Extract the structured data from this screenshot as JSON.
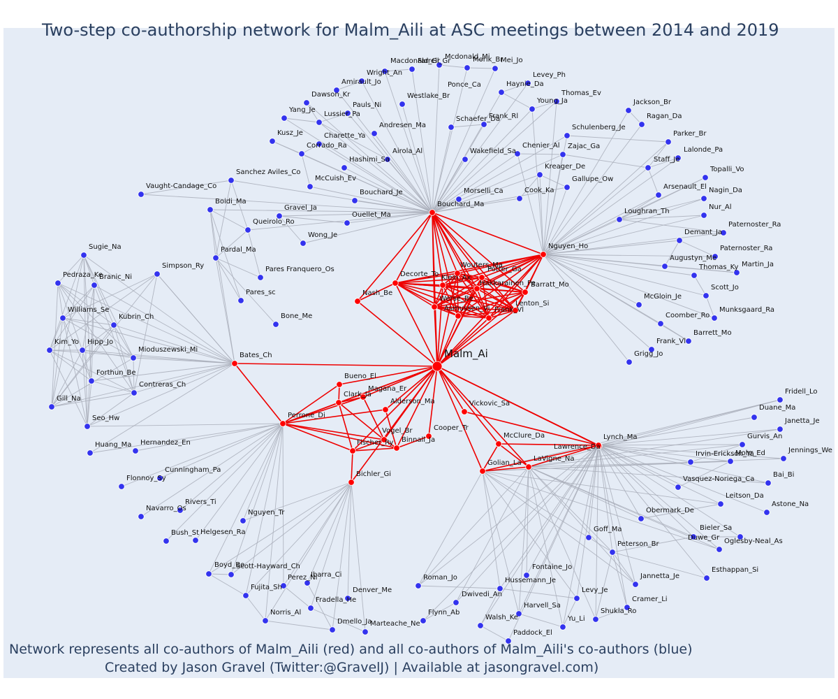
{
  "title": "Two-step co-authorship network for Malm_Aili at ASC meetings between 2014 and 2019",
  "footer": {
    "line1": "Network represents all co-authors of Malm_Aili (red) and all co-authors of Malm_Aili's co-authors (blue)",
    "line2": "Created by Jason Gravel (Twitter:@GravelJ) | Available at jasongravel.com)"
  },
  "colors": {
    "focal": "#ff0000",
    "first_step": "#ff0000",
    "second_step": "#3333ee",
    "edge_red": "#ee0000",
    "edge_gray": "#a8adb8"
  },
  "focal_author": "Malm_Ai",
  "red_nodes": [
    "Bouchard_Ma",
    "Nguyen_Ho",
    "Decorte_To",
    "Wouters_Ma",
    "Potter_Ga",
    "Klein_Ax",
    "Hakkarainen_Pe",
    "Barratt_Mo",
    "Werse_Be",
    "Asmussen_Vi",
    "Frank_Vl",
    "Lenton_Si",
    "Nash_Be",
    "Bates_Ch",
    "Bueno_El",
    "Clark_Ja",
    "Magana_Er",
    "Alderson_Ma",
    "Perrone_Di",
    "Vogel_Br",
    "Fischer_Ry",
    "Binnall_Ja",
    "Cooper_Tr",
    "Vickovic_Sa",
    "McClure_Da",
    "Lawrence_Da",
    "Lynch_Ma",
    "Golian_La",
    "LaVigne_Na",
    "Bichler_Gi"
  ],
  "blue_nodes": [
    "Sugie_Na",
    "Pedraza_Ke",
    "Branic_Ni",
    "Williams_Se",
    "Kubrin_Ch",
    "Kim_Yo",
    "Hipp_Jo",
    "Mioduszewski_Mi",
    "Forthun_Be",
    "Contreras_Ch",
    "Gill_Na",
    "Seo_Hw",
    "Huang_Ma",
    "Hernandez_En",
    "Cunningham_Pa",
    "Flonnoy_Sy",
    "Navarro_Os",
    "Rivers_Ti",
    "Bush_St",
    "Helgesen_Ra",
    "Nguyen_Tr",
    "Boyd_Bo",
    "Scott-Hayward_Ch",
    "Perez_Ni",
    "Ibarra_Ci",
    "Fujita_Sh",
    "Fradella_He",
    "Denver_Me",
    "Norris_Al",
    "Dmello_Ja",
    "Marteache_Ne",
    "Roman_Jo",
    "Flynn_Ab",
    "Dwivedi_An",
    "Hussemann_Je",
    "Fontaine_Jo",
    "Walsh_Ke",
    "Harvell_Sa",
    "Paddock_El",
    "Yu_Li",
    "Levy_Je",
    "Shukla_Ro",
    "Cramer_Li",
    "Jannetta_Je",
    "Esthappan_Si",
    "Peterson_Br",
    "Goff_Ma",
    "Duwe_Gr",
    "Bieler_Sa",
    "Oglesby-Neal_As",
    "Astone_Na",
    "Obermark_De",
    "Leitson_Da",
    "Bai_Bi",
    "Vasquez-Noriega_Ca",
    "Mohr_Ed",
    "Irvin-Erickson_Ya",
    "Gurvis_An",
    "Jennings_We",
    "Janetta_Je",
    "Duane_Ma",
    "Fridell_Lo",
    "Simpson_Ry",
    "Vaught-Candage_Co",
    "Sanchez Aviles_Co",
    "Boidi_Ma",
    "Queirolo_Ro",
    "Pardal_Ma",
    "Pares Franquero_Os",
    "Pares_sc",
    "Bone_Me",
    "Gravel_Ja",
    "Wong_Je",
    "Ouellet_Ma",
    "Bouchard_Je",
    "McCuish_Ev",
    "Corrado_Ra",
    "Charette_Ya",
    "Kusz_Je",
    "Yang_Je",
    "Dawson_Kr",
    "Lussier_Pa",
    "Pauls_Ni",
    "Amirault_Jo",
    "Wright_An",
    "Macdonald_Gr",
    "Farrell_Gr",
    "Mcdonald_Mi",
    "Morik_Br",
    "Mei_Jo",
    "Levey_Ph",
    "Haynie_Da",
    "Thomas_Ev",
    "Young_Ja",
    "Ponce_Ca",
    "Westlake_Br",
    "Frank_Rl",
    "Schaefer_Da",
    "Andresen_Ma",
    "Airola_Al",
    "Hashimi_Sa",
    "Wakefield_Sa",
    "Chenier_Al",
    "Zajac_Ga",
    "Schulenberg_Je",
    "Jackson_Br",
    "Ragan_Da",
    "Parker_Br",
    "Lalonde_Pa",
    "Staff_Je",
    "Topalli_Vo",
    "Nagin_Da",
    "Arsenault_El",
    "Nur_Al",
    "Loughran_Th",
    "Paternoster_Ra",
    "Paternoster_Rra",
    "Demant_Ja",
    "Augustyn_Me",
    "Martin_Ja",
    "Thomas_Ky",
    "Scott_Jo",
    "McGloin_Je",
    "Munksgaard_Ra",
    "Coomber_Ro",
    "Barrett_Mo",
    "Frank_Vl2",
    "Grigg_Jo",
    "Kreager_De",
    "Gallupe_Ow",
    "Cook_Ka",
    "Morselli_Ca"
  ]
}
